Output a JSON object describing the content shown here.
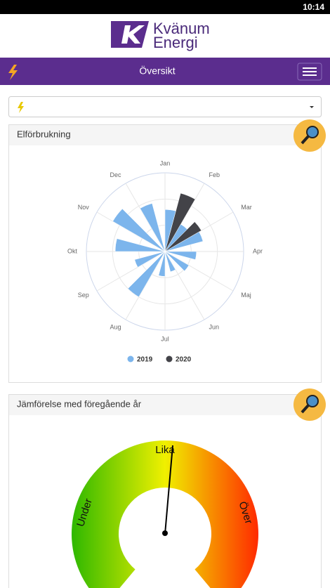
{
  "status_bar": {
    "time": "10:14"
  },
  "logo": {
    "line1": "Kvänum",
    "line2": "Energi"
  },
  "nav": {
    "title": "Översikt"
  },
  "cards": [
    {
      "title": "Elförbrukning"
    },
    {
      "title": "Jämförelse med föregående år"
    }
  ],
  "chart_data": {
    "type": "polar_bar",
    "categories": [
      "Jan",
      "Feb",
      "Mar",
      "Apr",
      "Maj",
      "Jun",
      "Jul",
      "Aug",
      "Sep",
      "Okt",
      "Nov",
      "Dec"
    ],
    "series": [
      {
        "name": "2019",
        "color": "#7cb5ec",
        "values": [
          160,
          120,
          150,
          120,
          105,
          80,
          95,
          200,
          120,
          190,
          230,
          190
        ]
      },
      {
        "name": "2020",
        "color": "#434348",
        "values": [
          230,
          160,
          null,
          null,
          null,
          null,
          null,
          null,
          null,
          null,
          null,
          null
        ]
      }
    ],
    "ylim": [
      0,
      300
    ],
    "legend": "bottom"
  },
  "gauge": {
    "under": "Under",
    "equal": "Lika",
    "over": "Över"
  }
}
